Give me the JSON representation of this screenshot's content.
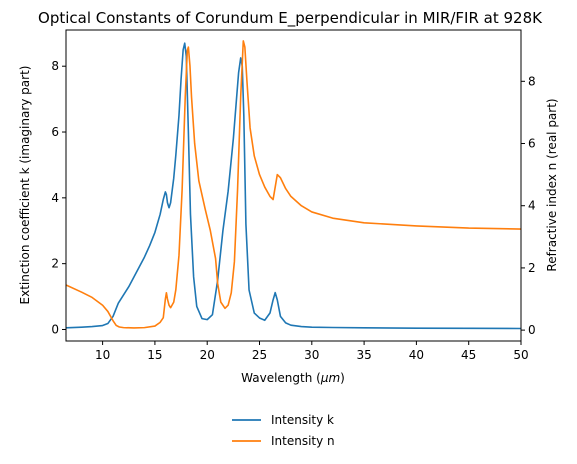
{
  "chart_data": {
    "type": "line",
    "title": "Optical Constants of Corundum E_perpendicular in MIR/FIR at 928K",
    "xlabel": "Wavelength ($\\mu m$)",
    "ylabel_left": "Extinction coefficient k (imaginary part)",
    "ylabel_right": "Refractive index n (real part)",
    "xlim": [
      6.5,
      50
    ],
    "ylim_left": [
      -0.35,
      9.1
    ],
    "ylim_right": [
      -0.35,
      9.65
    ],
    "x_ticks": [
      10,
      15,
      20,
      25,
      30,
      35,
      40,
      45,
      50
    ],
    "y_ticks_left": [
      0,
      2,
      4,
      6,
      8
    ],
    "y_ticks_right": [
      0,
      2,
      4,
      6,
      8
    ],
    "grid": false,
    "legend_placement": "below",
    "series": [
      {
        "name": "Intensity k",
        "axis": "left",
        "color": "#1f77b4",
        "x": [
          6.5,
          8,
          9,
          10,
          10.5,
          11,
          11.5,
          12,
          12.5,
          13,
          13.5,
          14,
          14.5,
          15,
          15.5,
          15.8,
          16.0,
          16.1,
          16.2,
          16.35,
          16.5,
          16.8,
          17.0,
          17.3,
          17.5,
          17.7,
          17.85,
          18.0,
          18.2,
          18.4,
          18.7,
          19.0,
          19.5,
          20.0,
          20.5,
          21.0,
          21.5,
          22.0,
          22.5,
          22.8,
          23.0,
          23.2,
          23.35,
          23.5,
          23.7,
          24.0,
          24.5,
          25.0,
          25.5,
          26.0,
          26.3,
          26.5,
          26.7,
          27.0,
          27.5,
          28.0,
          29.0,
          30.0,
          32.0,
          35.0,
          40.0,
          45.0,
          50.0
        ],
        "y": [
          0.05,
          0.07,
          0.09,
          0.12,
          0.18,
          0.4,
          0.8,
          1.05,
          1.3,
          1.6,
          1.9,
          2.2,
          2.55,
          2.95,
          3.5,
          3.95,
          4.18,
          4.1,
          3.85,
          3.7,
          3.85,
          4.6,
          5.3,
          6.5,
          7.6,
          8.5,
          8.7,
          8.3,
          6.0,
          3.5,
          1.6,
          0.7,
          0.33,
          0.3,
          0.45,
          1.5,
          3.0,
          4.2,
          5.8,
          7.0,
          7.8,
          8.25,
          8.0,
          6.5,
          3.2,
          1.2,
          0.5,
          0.35,
          0.28,
          0.5,
          0.9,
          1.12,
          0.9,
          0.4,
          0.2,
          0.13,
          0.09,
          0.07,
          0.06,
          0.05,
          0.04,
          0.035,
          0.03
        ]
      },
      {
        "name": "Intensity n",
        "axis": "right",
        "color": "#ff7f0e",
        "x": [
          6.5,
          8,
          9,
          10,
          10.5,
          11,
          11.3,
          11.6,
          12,
          13,
          14,
          15,
          15.5,
          15.8,
          16.0,
          16.1,
          16.2,
          16.35,
          16.5,
          16.8,
          17.0,
          17.3,
          17.6,
          17.9,
          18.1,
          18.2,
          18.35,
          18.5,
          18.8,
          19.2,
          19.8,
          20.3,
          20.8,
          21.0,
          21.3,
          21.7,
          22.0,
          22.3,
          22.6,
          22.9,
          23.2,
          23.45,
          23.6,
          23.8,
          24.1,
          24.5,
          25.0,
          25.5,
          26.0,
          26.3,
          26.5,
          26.7,
          27.0,
          27.5,
          28.0,
          29.0,
          30.0,
          32.0,
          35.0,
          40.0,
          45.0,
          50.0
        ],
        "y": [
          1.45,
          1.22,
          1.05,
          0.8,
          0.6,
          0.3,
          0.15,
          0.1,
          0.08,
          0.07,
          0.08,
          0.13,
          0.25,
          0.4,
          1.0,
          1.2,
          1.0,
          0.8,
          0.72,
          0.9,
          1.3,
          2.4,
          4.5,
          7.5,
          9.0,
          9.1,
          8.5,
          7.5,
          6.0,
          4.8,
          3.9,
          3.2,
          2.3,
          1.5,
          0.9,
          0.7,
          0.8,
          1.2,
          2.2,
          4.5,
          7.5,
          9.3,
          9.1,
          8.0,
          6.5,
          5.6,
          5.0,
          4.6,
          4.3,
          4.2,
          4.6,
          5.0,
          4.9,
          4.55,
          4.3,
          4.0,
          3.8,
          3.6,
          3.45,
          3.35,
          3.28,
          3.25
        ]
      }
    ]
  }
}
